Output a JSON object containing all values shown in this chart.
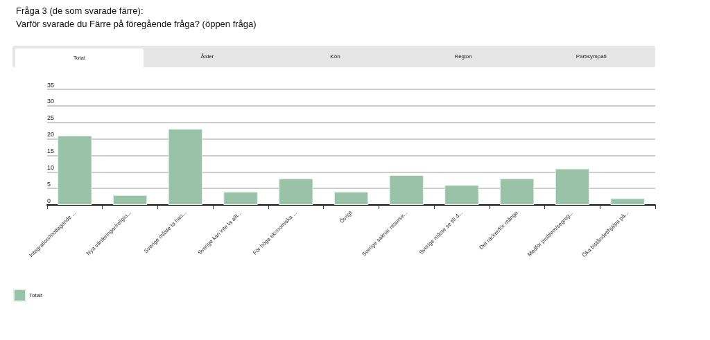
{
  "chart_data": {
    "type": "bar",
    "title": "Fråga 3 (de som svarade färre):",
    "subtitle": "Varför svarade du Färre på föregående fråga? (öppen fråga)",
    "annotations": [
      "Total",
      "Ålder",
      "Kön",
      "Region",
      "Partisympati"
    ],
    "categories": [
      "Integration/mottagande ...",
      "Nya värderingar/religio...",
      "Sverige måste ta han...",
      "Sverige kan inte ta allt...",
      "För höga ekonomiska ...",
      "Övrigt",
      "Sverige saknar resurse...",
      "Sverige måste se till d...",
      "Det räcker/för många",
      "Medför problem/segreg...",
      "Öka biståndet/hjälpa på..."
    ],
    "series": [
      {
        "name": "Totalt",
        "color": "#9ac2a8",
        "values": [
          21,
          3,
          23,
          4,
          8,
          4,
          9,
          6,
          8,
          11,
          2
        ]
      }
    ],
    "ylim": [
      0,
      35
    ],
    "yticks": [
      0,
      5,
      10,
      15,
      20,
      25,
      30,
      35
    ],
    "grid": "y",
    "legend": "bottom left"
  }
}
